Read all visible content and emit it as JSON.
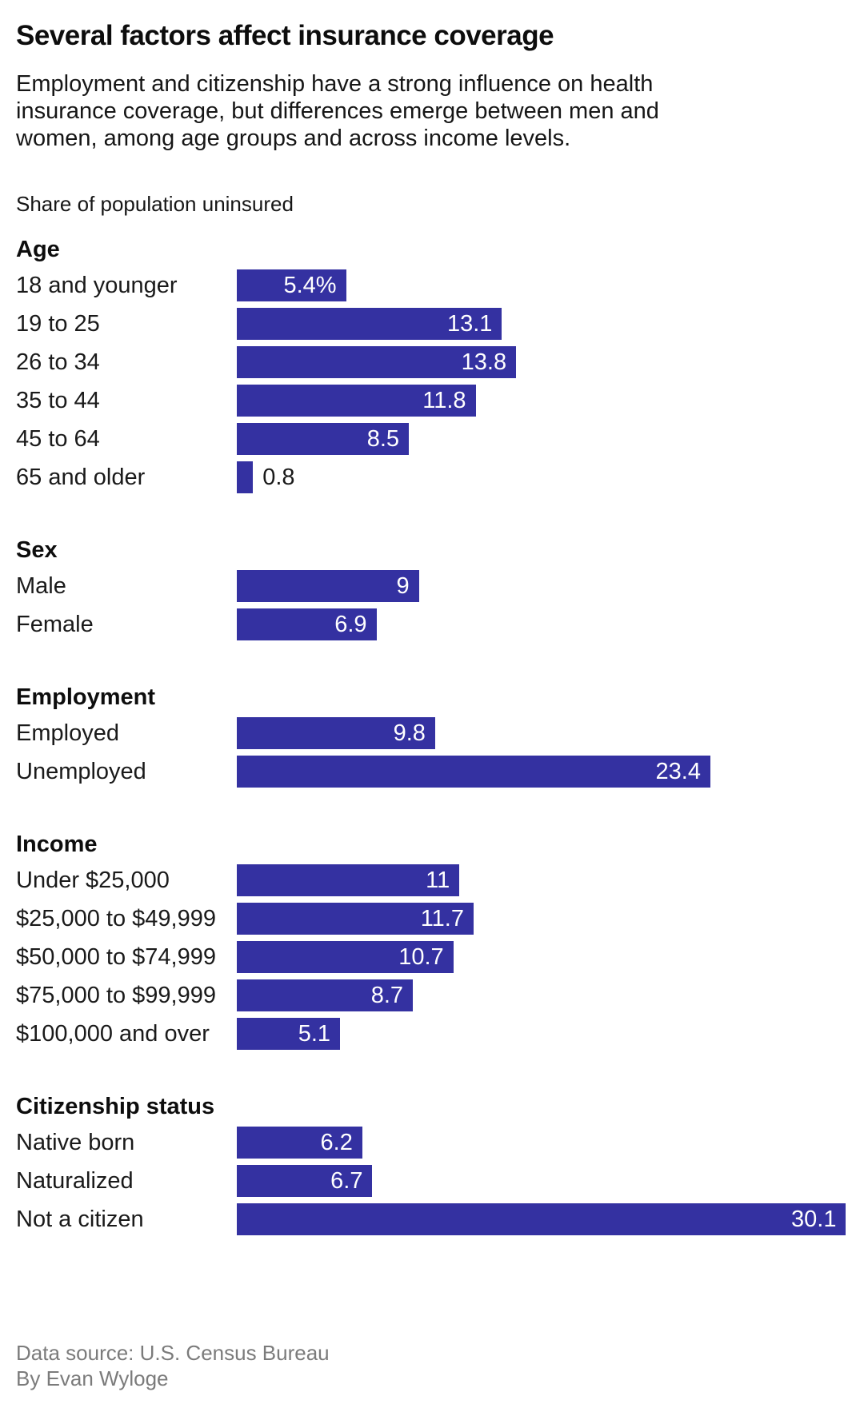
{
  "header": {
    "title": "Several factors affect insurance coverage",
    "subtitle": "Employment and citizenship have a strong influence on health insurance coverage, but differences emerge between men and women, among age groups and across income levels.",
    "axis_label": "Share of population uninsured"
  },
  "colors": {
    "bar": "#3431a1",
    "bar_value_text": "#ffffff",
    "text": "#1a1a1a",
    "footer_text": "#7b7b7b"
  },
  "chart_data": {
    "type": "bar",
    "orientation": "horizontal",
    "unit": "percent",
    "xlim": [
      0,
      30.2
    ],
    "grid": false,
    "legend": false,
    "title": "Several factors affect insurance coverage",
    "axis_label": "Share of population uninsured",
    "groups": [
      {
        "title": "Age",
        "rows": [
          {
            "label": "18 and younger",
            "value": 5.4,
            "display": "5.4%",
            "label_inside": true
          },
          {
            "label": "19 to 25",
            "value": 13.1,
            "display": "13.1",
            "label_inside": true
          },
          {
            "label": "26 to 34",
            "value": 13.8,
            "display": "13.8",
            "label_inside": true
          },
          {
            "label": "35 to 44",
            "value": 11.8,
            "display": "11.8",
            "label_inside": true
          },
          {
            "label": "45 to 64",
            "value": 8.5,
            "display": "8.5",
            "label_inside": true
          },
          {
            "label": "65 and older",
            "value": 0.8,
            "display": "0.8",
            "label_inside": false
          }
        ]
      },
      {
        "title": "Sex",
        "rows": [
          {
            "label": "Male",
            "value": 9,
            "display": "9",
            "label_inside": true
          },
          {
            "label": "Female",
            "value": 6.9,
            "display": "6.9",
            "label_inside": true
          }
        ]
      },
      {
        "title": "Employment",
        "rows": [
          {
            "label": "Employed",
            "value": 9.8,
            "display": "9.8",
            "label_inside": true
          },
          {
            "label": "Unemployed",
            "value": 23.4,
            "display": "23.4",
            "label_inside": true
          }
        ]
      },
      {
        "title": "Income",
        "rows": [
          {
            "label": "Under $25,000",
            "value": 11,
            "display": "11",
            "label_inside": true
          },
          {
            "label": "$25,000 to $49,999",
            "value": 11.7,
            "display": "11.7",
            "label_inside": true
          },
          {
            "label": "$50,000 to $74,999",
            "value": 10.7,
            "display": "10.7",
            "label_inside": true
          },
          {
            "label": "$75,000 to $99,999",
            "value": 8.7,
            "display": "8.7",
            "label_inside": true
          },
          {
            "label": "$100,000 and over",
            "value": 5.1,
            "display": "5.1",
            "label_inside": true
          }
        ]
      },
      {
        "title": "Citizenship status",
        "rows": [
          {
            "label": "Native born",
            "value": 6.2,
            "display": "6.2",
            "label_inside": true
          },
          {
            "label": "Naturalized",
            "value": 6.7,
            "display": "6.7",
            "label_inside": true
          },
          {
            "label": "Not a citizen",
            "value": 30.1,
            "display": "30.1",
            "label_inside": true
          }
        ]
      }
    ]
  },
  "footer": {
    "source": "Data source: U.S. Census Bureau",
    "byline": "By Evan Wyloge"
  }
}
